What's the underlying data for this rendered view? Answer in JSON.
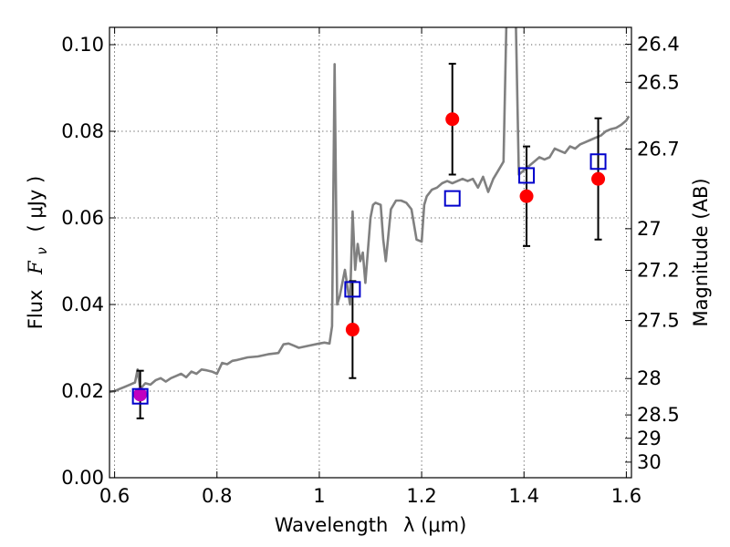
{
  "colors": {
    "model": "#808080",
    "observed": "#ff0000",
    "model_points": "#0000cc",
    "errorbar": "#000000",
    "overlap_marker": "#c000c0"
  },
  "chart_data": {
    "type": "scatter",
    "xlabel_text": "Wavelength",
    "xlabel_symbol": "λ (μm)",
    "ylabel_text": "Flux",
    "ylabel_symbol": "F",
    "ylabel_subscript": "ν",
    "ylabel_unit": "( μJy )",
    "y2label": "Magnitude (AB)",
    "xlim": [
      0.59,
      1.61
    ],
    "ylim": [
      0.0,
      0.104
    ],
    "grid": true,
    "x_ticks": [
      0.6,
      0.8,
      1.0,
      1.2,
      1.4,
      1.6
    ],
    "x_tick_labels": [
      "0.6",
      "0.8",
      "1",
      "1.2",
      "1.4",
      "1.6"
    ],
    "y_ticks": [
      0.0,
      0.02,
      0.04,
      0.06,
      0.08,
      0.1
    ],
    "y_tick_labels": [
      "0.00",
      "0.02",
      "0.04",
      "0.06",
      "0.08",
      "0.10"
    ],
    "y2_ticks": [
      {
        "label": "26.4",
        "flux": 0.1001
      },
      {
        "label": "26.5",
        "flux": 0.0913
      },
      {
        "label": "26.7",
        "flux": 0.0759
      },
      {
        "label": "27",
        "flux": 0.0575
      },
      {
        "label": "27.2",
        "flux": 0.0479
      },
      {
        "label": "27.5",
        "flux": 0.0363
      },
      {
        "label": "28",
        "flux": 0.0229
      },
      {
        "label": "28.5",
        "flux": 0.0145
      },
      {
        "label": "29",
        "flux": 0.0091
      },
      {
        "label": "30",
        "flux": 0.0036
      }
    ],
    "series": [
      {
        "kind": "line",
        "points": [
          [
            0.59,
            0.0198
          ],
          [
            0.6,
            0.02
          ],
          [
            0.61,
            0.0205
          ],
          [
            0.62,
            0.021
          ],
          [
            0.63,
            0.0215
          ],
          [
            0.64,
            0.022
          ],
          [
            0.645,
            0.025
          ],
          [
            0.65,
            0.0205
          ],
          [
            0.66,
            0.0218
          ],
          [
            0.67,
            0.0215
          ],
          [
            0.68,
            0.0225
          ],
          [
            0.69,
            0.023
          ],
          [
            0.7,
            0.0222
          ],
          [
            0.71,
            0.023
          ],
          [
            0.72,
            0.0235
          ],
          [
            0.73,
            0.024
          ],
          [
            0.74,
            0.0232
          ],
          [
            0.75,
            0.0245
          ],
          [
            0.76,
            0.024
          ],
          [
            0.77,
            0.025
          ],
          [
            0.78,
            0.0248
          ],
          [
            0.79,
            0.0245
          ],
          [
            0.8,
            0.024
          ],
          [
            0.81,
            0.0265
          ],
          [
            0.82,
            0.0262
          ],
          [
            0.83,
            0.027
          ],
          [
            0.84,
            0.0272
          ],
          [
            0.85,
            0.0275
          ],
          [
            0.86,
            0.0278
          ],
          [
            0.88,
            0.028
          ],
          [
            0.9,
            0.0285
          ],
          [
            0.92,
            0.0288
          ],
          [
            0.93,
            0.0308
          ],
          [
            0.94,
            0.031
          ],
          [
            0.95,
            0.0305
          ],
          [
            0.96,
            0.03
          ],
          [
            0.98,
            0.0305
          ],
          [
            1.0,
            0.031
          ],
          [
            1.01,
            0.0312
          ],
          [
            1.02,
            0.031
          ],
          [
            1.025,
            0.035
          ],
          [
            1.03,
            0.0955
          ],
          [
            1.035,
            0.04
          ],
          [
            1.04,
            0.042
          ],
          [
            1.05,
            0.048
          ],
          [
            1.06,
            0.04
          ],
          [
            1.065,
            0.0615
          ],
          [
            1.07,
            0.048
          ],
          [
            1.075,
            0.054
          ],
          [
            1.08,
            0.05
          ],
          [
            1.085,
            0.052
          ],
          [
            1.09,
            0.045
          ],
          [
            1.1,
            0.06
          ],
          [
            1.105,
            0.063
          ],
          [
            1.11,
            0.0635
          ],
          [
            1.12,
            0.063
          ],
          [
            1.125,
            0.055
          ],
          [
            1.13,
            0.05
          ],
          [
            1.14,
            0.062
          ],
          [
            1.15,
            0.064
          ],
          [
            1.16,
            0.064
          ],
          [
            1.17,
            0.0635
          ],
          [
            1.18,
            0.062
          ],
          [
            1.19,
            0.055
          ],
          [
            1.2,
            0.0545
          ],
          [
            1.205,
            0.063
          ],
          [
            1.21,
            0.065
          ],
          [
            1.22,
            0.0665
          ],
          [
            1.23,
            0.067
          ],
          [
            1.24,
            0.068
          ],
          [
            1.25,
            0.0685
          ],
          [
            1.26,
            0.068
          ],
          [
            1.27,
            0.0685
          ],
          [
            1.28,
            0.069
          ],
          [
            1.29,
            0.0685
          ],
          [
            1.3,
            0.069
          ],
          [
            1.31,
            0.067
          ],
          [
            1.32,
            0.0695
          ],
          [
            1.33,
            0.066
          ],
          [
            1.34,
            0.069
          ],
          [
            1.35,
            0.071
          ],
          [
            1.36,
            0.073
          ],
          [
            1.37,
            0.13
          ],
          [
            1.38,
            0.13
          ],
          [
            1.39,
            0.07
          ],
          [
            1.4,
            0.071
          ],
          [
            1.41,
            0.072
          ],
          [
            1.42,
            0.073
          ],
          [
            1.43,
            0.074
          ],
          [
            1.44,
            0.0735
          ],
          [
            1.45,
            0.074
          ],
          [
            1.46,
            0.076
          ],
          [
            1.47,
            0.0755
          ],
          [
            1.48,
            0.075
          ],
          [
            1.49,
            0.0765
          ],
          [
            1.5,
            0.076
          ],
          [
            1.51,
            0.077
          ],
          [
            1.52,
            0.0775
          ],
          [
            1.53,
            0.078
          ],
          [
            1.54,
            0.0785
          ],
          [
            1.55,
            0.079
          ],
          [
            1.56,
            0.08
          ],
          [
            1.57,
            0.0805
          ],
          [
            1.58,
            0.0808
          ],
          [
            1.59,
            0.0815
          ],
          [
            1.6,
            0.0825
          ],
          [
            1.605,
            0.0835
          ]
        ]
      },
      {
        "kind": "points_with_errors",
        "points": [
          {
            "x": 0.65,
            "y": 0.0192,
            "err": 0.0055
          },
          {
            "x": 1.065,
            "y": 0.0342,
            "err": 0.0112
          },
          {
            "x": 1.26,
            "y": 0.0828,
            "err": 0.0128
          },
          {
            "x": 1.405,
            "y": 0.065,
            "err": 0.0115
          },
          {
            "x": 1.545,
            "y": 0.069,
            "err": 0.014
          }
        ]
      },
      {
        "kind": "squares",
        "points": [
          {
            "x": 0.65,
            "y": 0.0188
          },
          {
            "x": 1.065,
            "y": 0.0435
          },
          {
            "x": 1.26,
            "y": 0.0645
          },
          {
            "x": 1.405,
            "y": 0.0698
          },
          {
            "x": 1.545,
            "y": 0.073
          }
        ]
      }
    ]
  }
}
